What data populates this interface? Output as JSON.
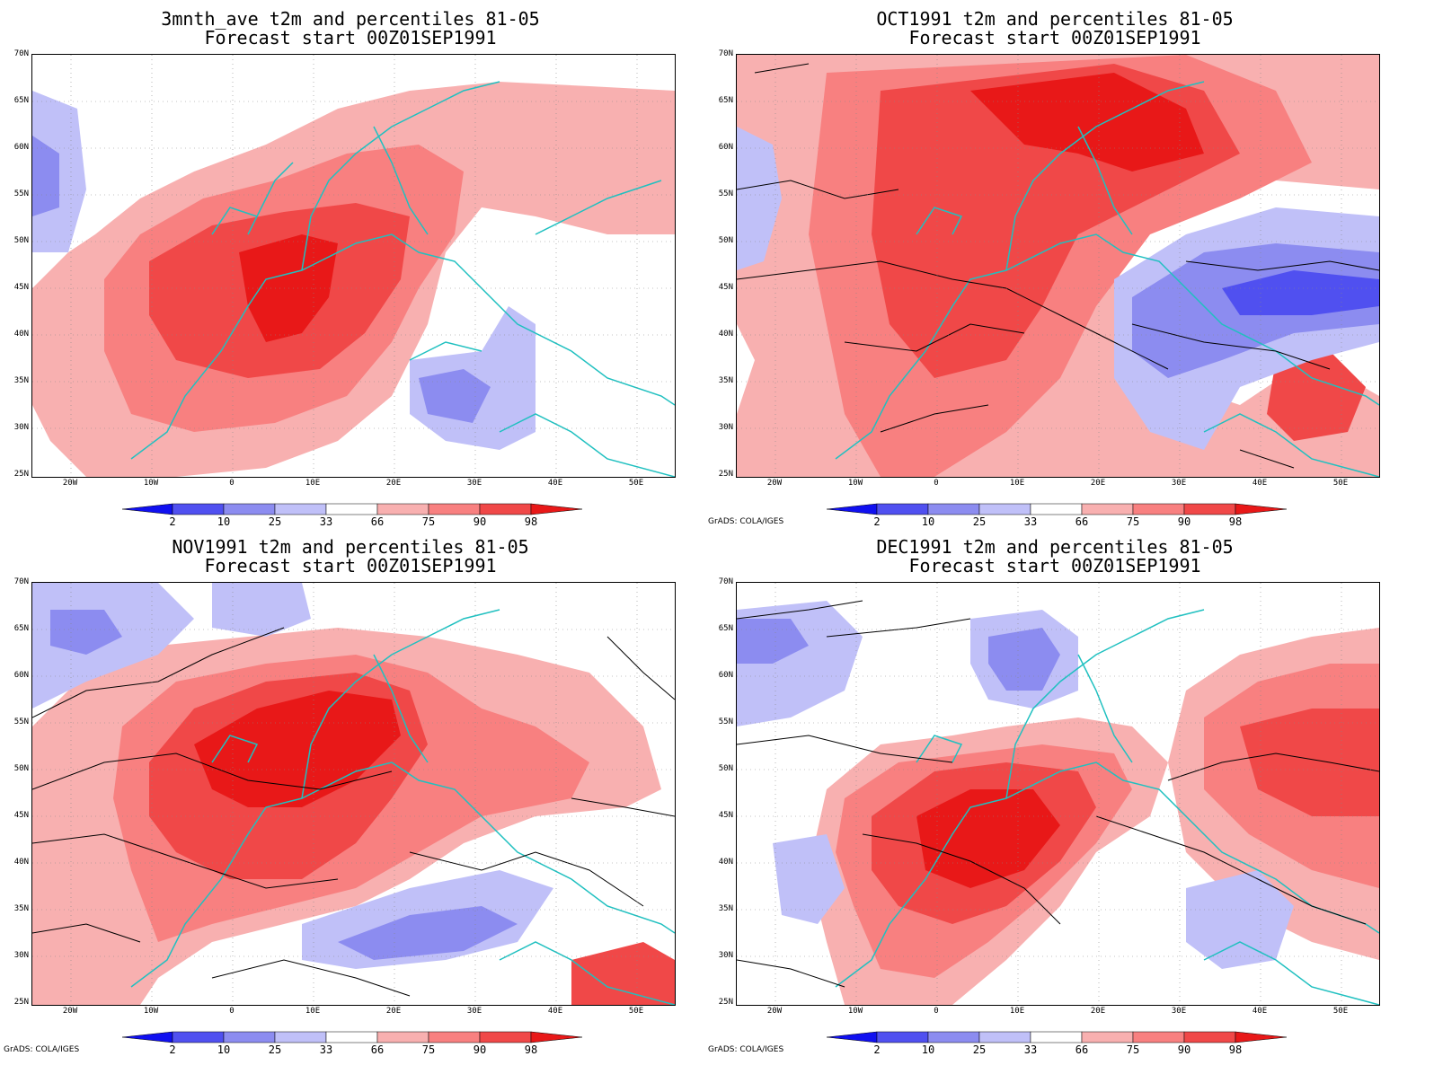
{
  "panels": [
    {
      "title1": "3mnth_ave t2m and percentiles 81-05",
      "title2": "Forecast start 00Z01SEP1991",
      "credit": ""
    },
    {
      "title1": "OCT1991 t2m and percentiles 81-05",
      "title2": "Forecast start 00Z01SEP1991",
      "credit": "GrADS: COLA/IGES"
    },
    {
      "title1": "NOV1991 t2m and percentiles 81-05",
      "title2": "Forecast start 00Z01SEP1991",
      "credit": "GrADS: COLA/IGES"
    },
    {
      "title1": "DEC1991 t2m and percentiles 81-05",
      "title2": "Forecast start 00Z01SEP1991",
      "credit": "GrADS: COLA/IGES"
    }
  ],
  "lat_labels": [
    "70N",
    "65N",
    "60N",
    "55N",
    "50N",
    "45N",
    "40N",
    "35N",
    "30N",
    "25N"
  ],
  "lon_labels": [
    "20W",
    "10W",
    "0",
    "10E",
    "20E",
    "30E",
    "40E",
    "50E"
  ],
  "colorbar": {
    "labels": [
      "2",
      "10",
      "25",
      "33",
      "66",
      "75",
      "90",
      "98"
    ],
    "colors": [
      "#1010f0",
      "#5050f0",
      "#8c8cf0",
      "#c0c0f8",
      "#ffffff",
      "#f8b0b0",
      "#f88080",
      "#f04848",
      "#e81818"
    ]
  },
  "colors": {
    "coast": "#20c0c0",
    "contour": "#000000"
  }
}
